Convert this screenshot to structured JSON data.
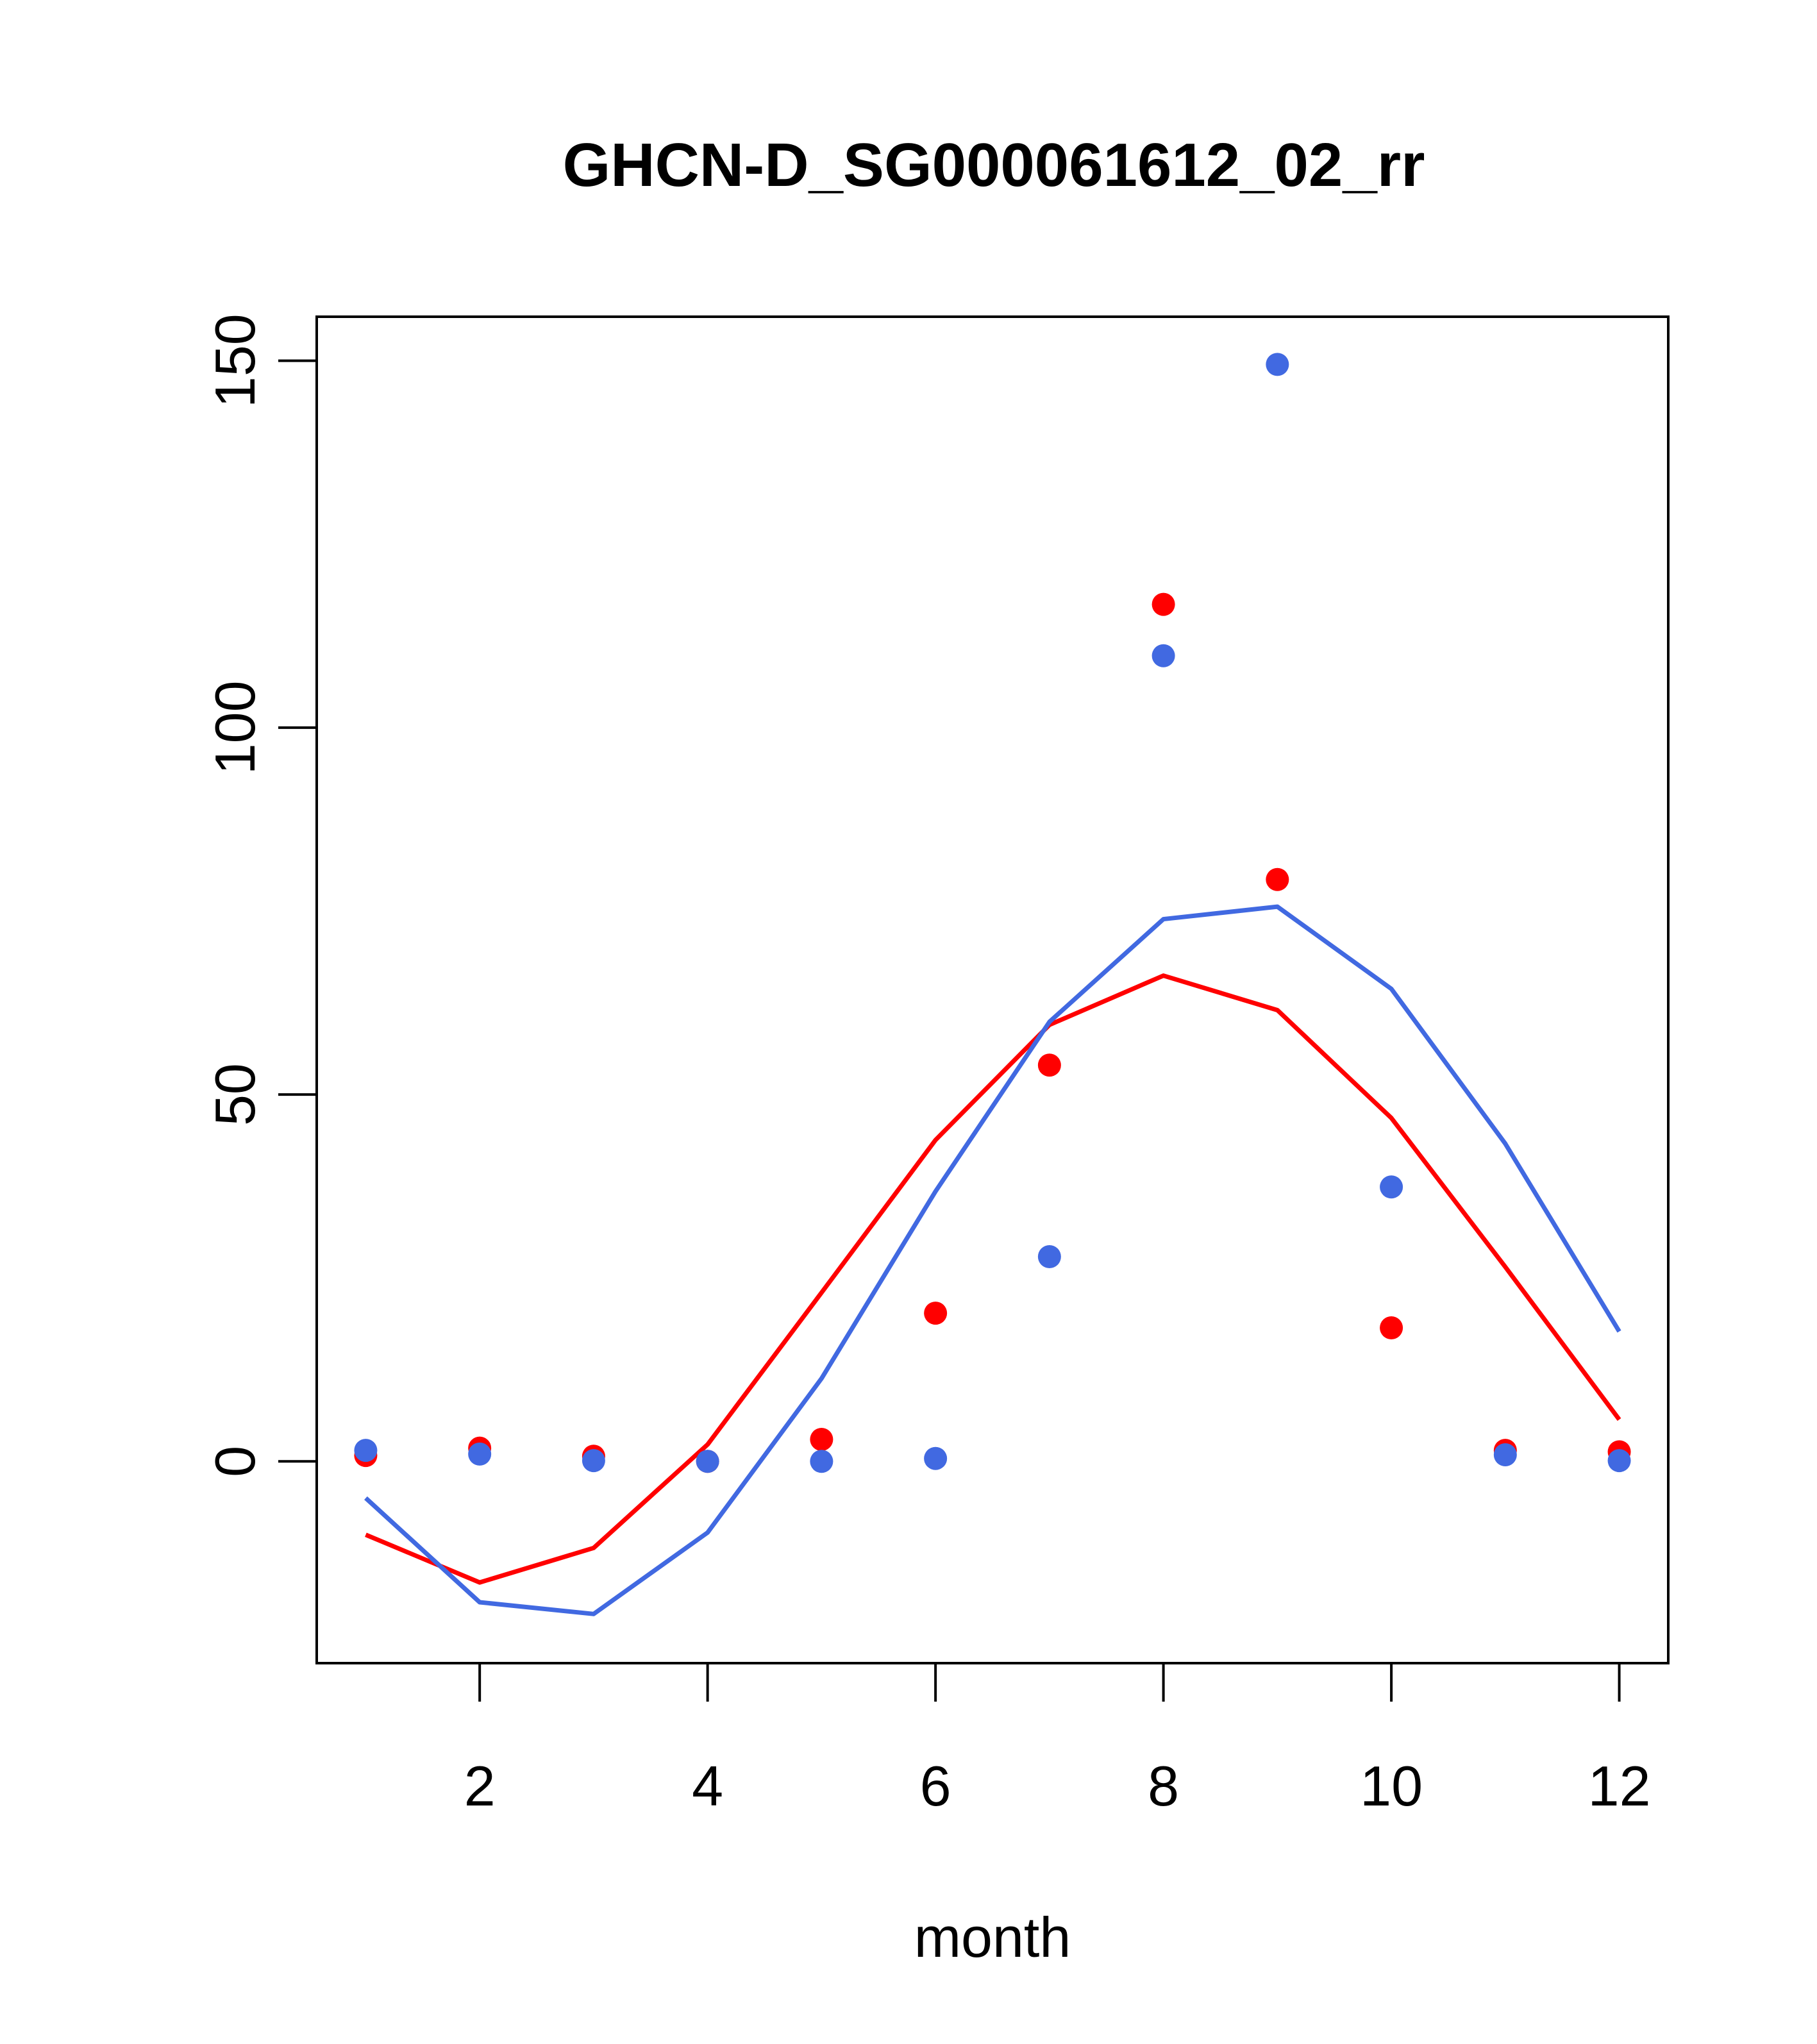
{
  "chart_data": {
    "type": "scatter",
    "title": "GHCN-D_SG000061612_02_rr",
    "xlabel": "month",
    "ylabel": "",
    "xlim": [
      0.57,
      12.43
    ],
    "ylim": [
      -27.5,
      156
    ],
    "xticks": [
      2,
      4,
      6,
      8,
      10,
      12
    ],
    "yticks": [
      0,
      50,
      100,
      150
    ],
    "grid": false,
    "legend": "none",
    "series": [
      {
        "kind": "points",
        "color": "#ff0000",
        "x": [
          1,
          2,
          3,
          4,
          5,
          6,
          7,
          8,
          9,
          10,
          11,
          12
        ],
        "y": [
          0.8,
          1.8,
          0.7,
          0.0,
          3.0,
          20.2,
          54.0,
          116.8,
          79.3,
          18.2,
          1.5,
          1.3
        ]
      },
      {
        "kind": "points",
        "color": "#4169e1",
        "x": [
          1,
          2,
          3,
          4,
          5,
          6,
          7,
          8,
          9,
          10,
          11,
          12
        ],
        "y": [
          1.5,
          1.0,
          0.1,
          0.0,
          0.0,
          0.4,
          27.9,
          109.8,
          149.5,
          37.4,
          0.9,
          0.1
        ]
      },
      {
        "kind": "line",
        "color": "#ff0000",
        "x": [
          1,
          2,
          3,
          4,
          5,
          6,
          7,
          8,
          9,
          10,
          11,
          12
        ],
        "y": [
          -10.0,
          -16.5,
          -11.8,
          2.3,
          23.0,
          43.8,
          59.5,
          66.2,
          61.5,
          46.8,
          26.5,
          5.7
        ]
      },
      {
        "kind": "line",
        "color": "#4169e1",
        "x": [
          1,
          2,
          3,
          4,
          5,
          6,
          7,
          8,
          9,
          10,
          11,
          12
        ],
        "y": [
          -5.0,
          -19.2,
          -20.8,
          -9.7,
          11.3,
          36.8,
          59.9,
          73.9,
          75.6,
          64.4,
          43.3,
          17.7
        ]
      }
    ]
  }
}
